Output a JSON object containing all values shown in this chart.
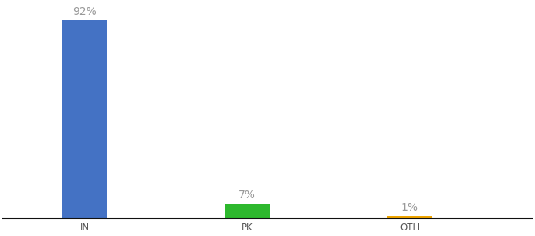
{
  "categories": [
    "IN",
    "PK",
    "OTH"
  ],
  "values": [
    92,
    7,
    1
  ],
  "bar_colors": [
    "#4472c4",
    "#2db82d",
    "#f0a500"
  ],
  "labels": [
    "92%",
    "7%",
    "1%"
  ],
  "ylim": [
    0,
    100
  ],
  "background_color": "#ffffff",
  "label_color": "#999999",
  "label_fontsize": 10,
  "tick_fontsize": 8.5,
  "bar_width": 0.55,
  "x_positions": [
    1,
    3,
    5
  ],
  "xlim": [
    0,
    6.5
  ]
}
